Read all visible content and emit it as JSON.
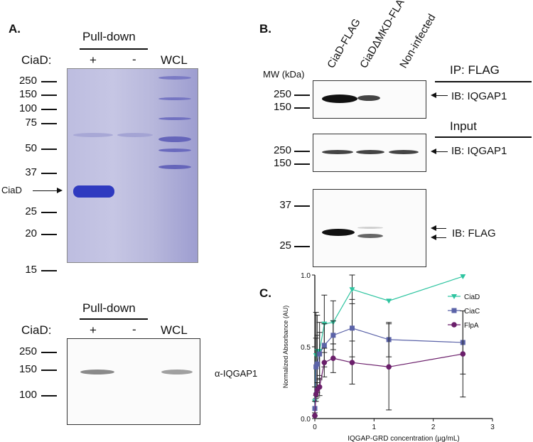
{
  "panelA": {
    "label": "A.",
    "pulldown_label": "Pull-down",
    "ciad_label": "CiaD:",
    "lane_plus": "+",
    "lane_minus": "-",
    "lane_wcl": "WCL",
    "mw_markers": [
      "250",
      "150",
      "100",
      "75",
      "50",
      "37",
      "25",
      "20",
      "15"
    ],
    "ciad_band_label": "CiaD",
    "blot": {
      "pulldown_label": "Pull-down",
      "ciad_label": "CiaD:",
      "lane_plus": "+",
      "lane_minus": "-",
      "lane_wcl": "WCL",
      "mw_markers": [
        "250",
        "150",
        "100"
      ],
      "antibody": "α-IQGAP1"
    }
  },
  "panelB": {
    "label": "B.",
    "lanes": [
      "CiaD-FLAG",
      "CiaDΔMKD-FLAG",
      "Non-infected"
    ],
    "mw_header": "MW (kDa)",
    "ip_header": "IP: FLAG",
    "input_header": "Input",
    "blot1": {
      "markers": [
        "250",
        "150"
      ],
      "ib": "IB: IQGAP1"
    },
    "blot2": {
      "markers": [
        "250",
        "150"
      ],
      "ib": "IB: IQGAP1"
    },
    "blot3": {
      "markers": [
        "37",
        "25"
      ],
      "ib": "IB: FLAG"
    }
  },
  "panelC": {
    "label": "C."
  },
  "chart_data": {
    "type": "line",
    "xlabel": "IQGAP-GRD concentration (µg/mL)",
    "ylabel": "Normalized Absorbance (AU)",
    "xlim": [
      0,
      3
    ],
    "ylim": [
      0,
      1.0
    ],
    "xticks": [
      "0",
      "1",
      "2",
      "3"
    ],
    "yticks": [
      "0.0",
      "0.5",
      "1.0"
    ],
    "legend_position": "right",
    "x": [
      0,
      0.02,
      0.04,
      0.08,
      0.16,
      0.31,
      0.63,
      1.25,
      2.5
    ],
    "series": [
      {
        "name": "CiaD",
        "color": "#2ec4a0",
        "marker": "triangle-down",
        "values": [
          0.12,
          0.44,
          0.47,
          0.47,
          0.66,
          0.67,
          0.9,
          0.82,
          0.99
        ],
        "errors": [
          0.1,
          0.3,
          0.25,
          0.2,
          0.2,
          0.15,
          0.1,
          0.0,
          0.0
        ]
      },
      {
        "name": "CiaC",
        "color": "#5b63a8",
        "marker": "square",
        "values": [
          0.07,
          0.36,
          0.38,
          0.45,
          0.51,
          0.58,
          0.63,
          0.55,
          0.53
        ],
        "errors": [
          0.05,
          0.2,
          0.2,
          0.15,
          0.15,
          0.1,
          0.2,
          0.12,
          0.22
        ]
      },
      {
        "name": "FlpA",
        "color": "#6b1f6b",
        "marker": "circle",
        "values": [
          0.02,
          0.17,
          0.2,
          0.22,
          0.39,
          0.42,
          0.39,
          0.36,
          0.45
        ],
        "errors": [
          0.02,
          0.05,
          0.05,
          0.06,
          0.1,
          0.1,
          0.15,
          0.3,
          0.3
        ]
      }
    ]
  }
}
